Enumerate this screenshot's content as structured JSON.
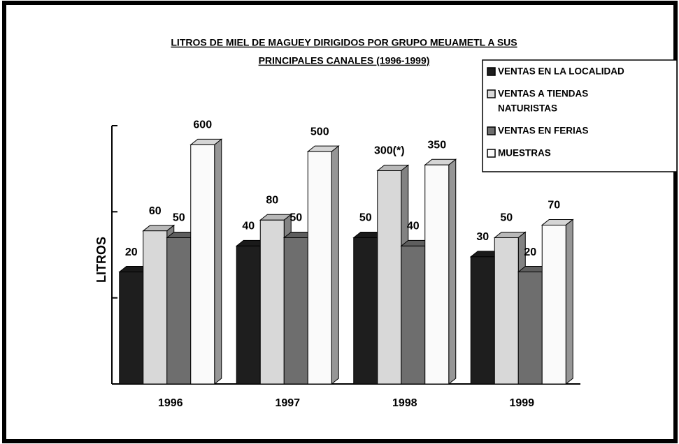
{
  "chart_data": {
    "type": "bar",
    "title": [
      "LITROS DE MIEL DE MAGUEY DIRIGIDOS POR GRUPO MEUAMETL A SUS",
      "PRINCIPALES CANALES (1996-1999)"
    ],
    "y_label": "LITROS",
    "categories": [
      "1996",
      "1997",
      "1998",
      "1999"
    ],
    "series": [
      {
        "name": "VENTAS EN LA LOCALIDAD",
        "color": "#1e1e1e",
        "values": [
          20,
          40,
          50,
          30
        ]
      },
      {
        "name": [
          "VENTAS A TIENDAS",
          "NATURISTAS"
        ],
        "color": "#d8d8d8",
        "values": [
          60,
          80,
          300,
          50
        ],
        "value_labels": [
          "60",
          "80",
          "300(*)",
          "50"
        ]
      },
      {
        "name": "VENTAS EN FERIAS",
        "color": "#6e6e6e",
        "values": [
          50,
          50,
          40,
          20
        ]
      },
      {
        "name": "MUESTRAS",
        "color": "#fafafa",
        "values": [
          600,
          500,
          350,
          70
        ]
      }
    ],
    "ylim": [
      1,
      1000
    ],
    "yticks": [
      1,
      10,
      100,
      1000
    ],
    "log_scale": true,
    "grid": false,
    "legend": "upper right"
  }
}
